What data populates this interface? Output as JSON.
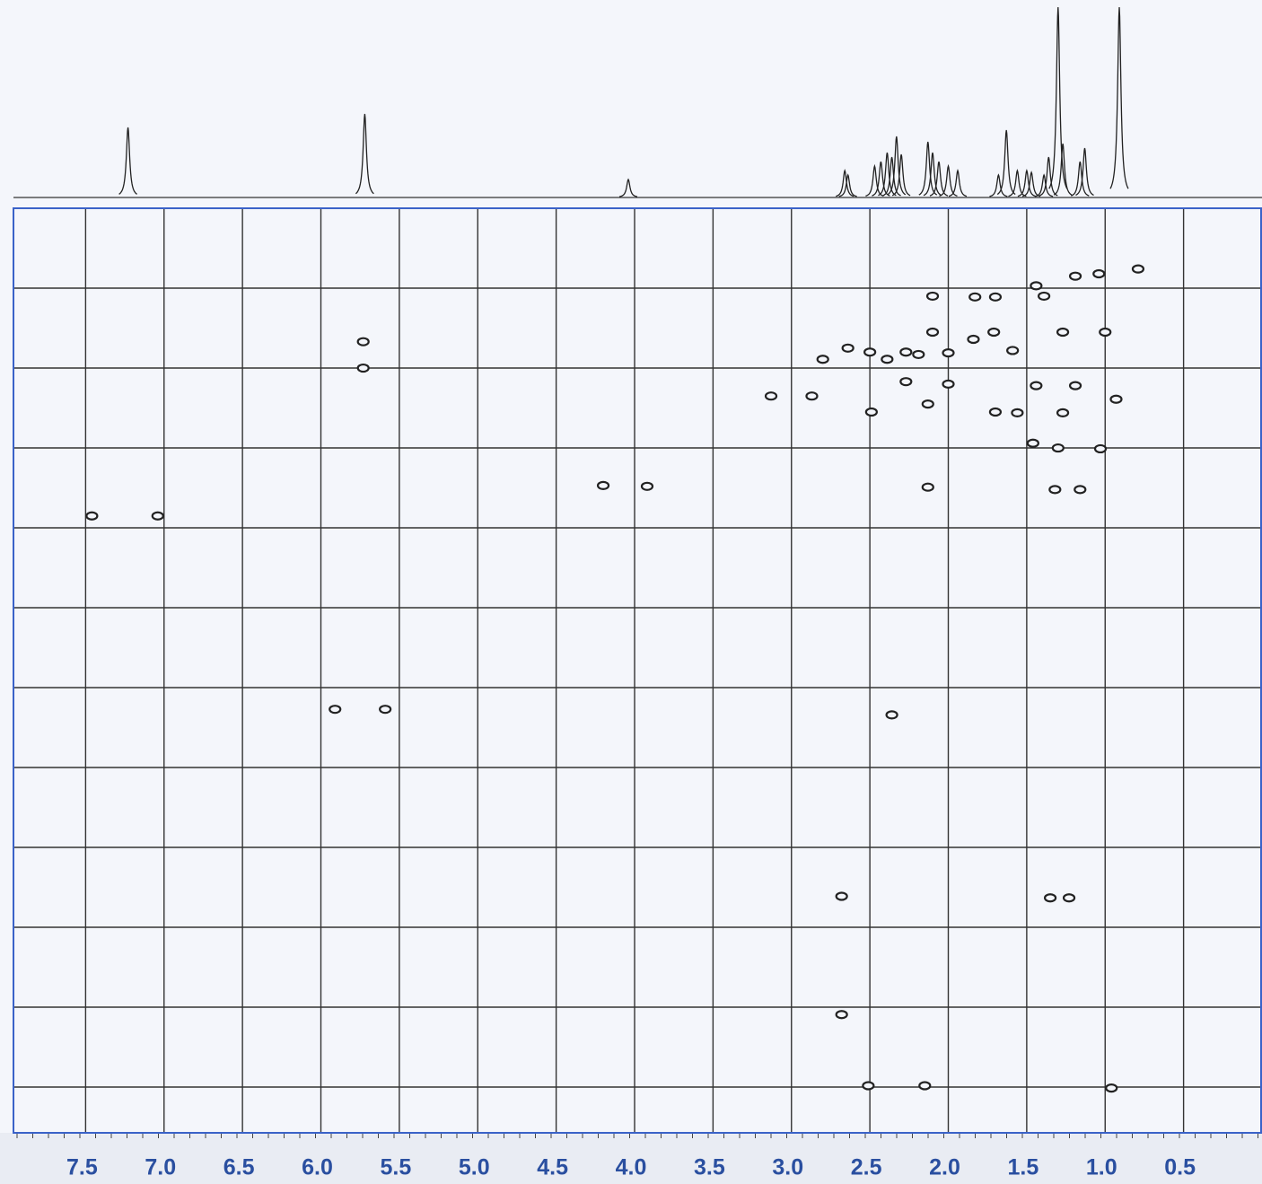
{
  "chart_data": {
    "type": "scatter",
    "xlim": [
      7.96,
      0.0
    ],
    "xticks": [
      7.5,
      {
        "value": 7,
        "label": "7.0"
      },
      6.5,
      {
        "value": 6,
        "label": "6.0"
      },
      5.5,
      {
        "value": 5,
        "label": "5.0"
      },
      4.5,
      {
        "value": 4,
        "label": "4.0"
      },
      3.5,
      {
        "value": 3,
        "label": "3.0"
      },
      2.5,
      {
        "value": 2,
        "label": "2.0"
      },
      1.5,
      {
        "value": 1,
        "label": "1.0"
      },
      0.5
    ],
    "ylim": [
      0,
      11.57
    ],
    "grid": true,
    "color": "#222222",
    "x": [
      7.46,
      7.04,
      5.73,
      5.73,
      5.91,
      5.59,
      4.2,
      3.92,
      3.13,
      2.87,
      2.8,
      2.64,
      2.5,
      2.39,
      2.27,
      2.19,
      2.49,
      2.27,
      2.1,
      2.1,
      2.0,
      2.0,
      2.13,
      1.84,
      1.83,
      1.7,
      1.71,
      1.7,
      1.59,
      1.56,
      1.44,
      1.39,
      1.44,
      1.46,
      1.3,
      1.27,
      1.27,
      1.19,
      1.19,
      1.04,
      1.0,
      1.03,
      1.32,
      1.16,
      0.79,
      0.93,
      2.13,
      2.36,
      2.68,
      1.35,
      1.23,
      2.68,
      2.51,
      2.15,
      0.96
    ],
    "values": [
      3.85,
      3.85,
      1.67,
      2.0,
      6.27,
      6.27,
      3.47,
      3.48,
      2.35,
      2.35,
      1.89,
      1.75,
      1.8,
      1.89,
      1.8,
      1.83,
      2.55,
      2.17,
      1.1,
      1.55,
      1.81,
      2.2,
      2.45,
      1.64,
      1.11,
      1.11,
      1.55,
      2.55,
      1.78,
      2.56,
      0.97,
      1.1,
      2.22,
      2.94,
      3.0,
      2.56,
      1.55,
      0.85,
      2.22,
      0.82,
      1.55,
      3.01,
      3.52,
      3.52,
      0.76,
      2.39,
      3.49,
      6.34,
      8.61,
      8.63,
      8.63,
      10.09,
      10.98,
      10.98,
      11.01
    ],
    "projection_x": [
      7.23,
      5.72,
      4.04,
      2.66,
      2.64,
      2.47,
      2.43,
      2.39,
      2.36,
      2.33,
      2.3,
      2.13,
      2.1,
      2.06,
      2.0,
      1.94,
      1.68,
      1.63,
      1.56,
      1.5,
      1.47,
      1.39,
      1.36,
      1.3,
      1.27,
      1.16,
      1.13,
      0.91
    ],
    "projection_values": [
      78,
      93,
      20,
      30,
      25,
      35,
      40,
      50,
      45,
      68,
      48,
      62,
      50,
      40,
      35,
      30,
      25,
      75,
      30,
      30,
      28,
      25,
      45,
      212,
      60,
      40,
      55,
      212
    ],
    "projection_ylim": [
      0,
      212
    ],
    "border_color": "#3a62c8",
    "label_color": "#2a4fa0"
  }
}
